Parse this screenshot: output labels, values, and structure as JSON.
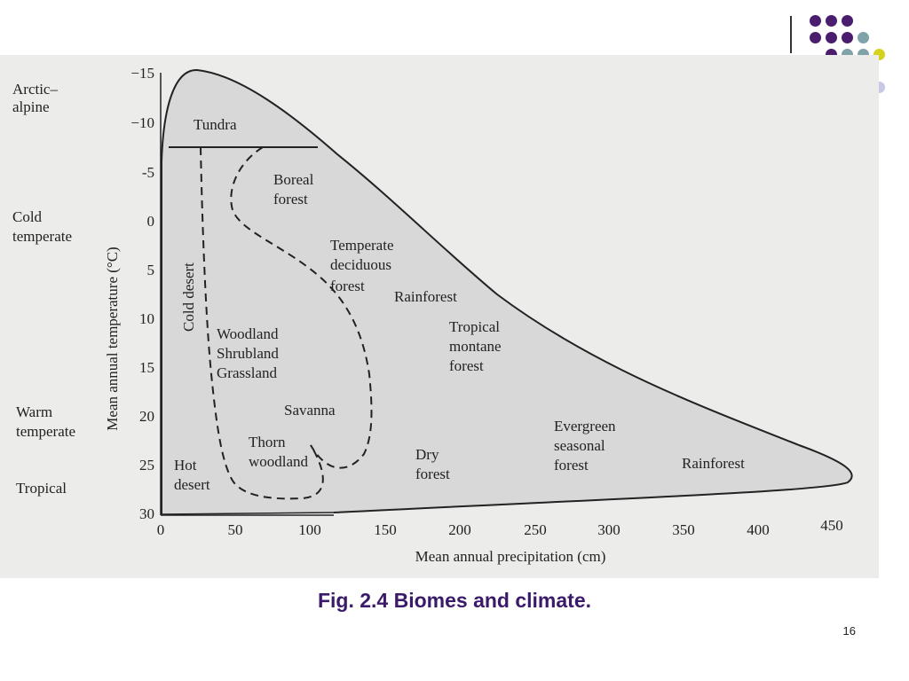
{
  "slide": {
    "caption": "Fig. 2.4 Biomes and climate.",
    "page_number": "16",
    "colors": {
      "caption": "#3b1a6a",
      "dot_purple": "#4b1d6e",
      "dot_teal": "#7fa3a8",
      "dot_yellow": "#d4d21e",
      "dot_lavender": "#c8c8e6"
    }
  },
  "diagram": {
    "y_axis_label": "Mean annual temperature (°C)",
    "x_axis_label": "Mean annual precipitation (cm)",
    "y_ticks": [
      "−15",
      "−10",
      "-5",
      "0",
      "5",
      "10",
      "15",
      "20",
      "25",
      "30"
    ],
    "x_ticks": [
      "0",
      "50",
      "100",
      "150",
      "200",
      "250",
      "300",
      "350",
      "400",
      "450"
    ],
    "zones": {
      "arctic_alpine": [
        "Arctic–",
        "alpine"
      ],
      "cold_temperate": [
        "Cold",
        "temperate"
      ],
      "warm_temperate": [
        "Warm",
        "temperate"
      ],
      "tropical": [
        "Tropical"
      ]
    },
    "biomes": {
      "tundra": "Tundra",
      "boreal": [
        "Boreal",
        "forest"
      ],
      "cold_desert": "Cold desert",
      "temperate_deciduous": [
        "Temperate",
        "deciduous",
        "forest"
      ],
      "rainforest_temperate": "Rainforest",
      "woodland": [
        "Woodland",
        "Shrubland",
        "Grassland"
      ],
      "tropical_montane": [
        "Tropical",
        "montane",
        "forest"
      ],
      "savanna": "Savanna",
      "evergreen": [
        "Evergreen",
        "seasonal",
        "forest"
      ],
      "thorn": [
        "Thorn",
        "woodland"
      ],
      "dry_forest": [
        "Dry",
        "forest"
      ],
      "hot_desert": [
        "Hot",
        "desert"
      ],
      "rainforest_tropical": "Rainforest"
    }
  }
}
